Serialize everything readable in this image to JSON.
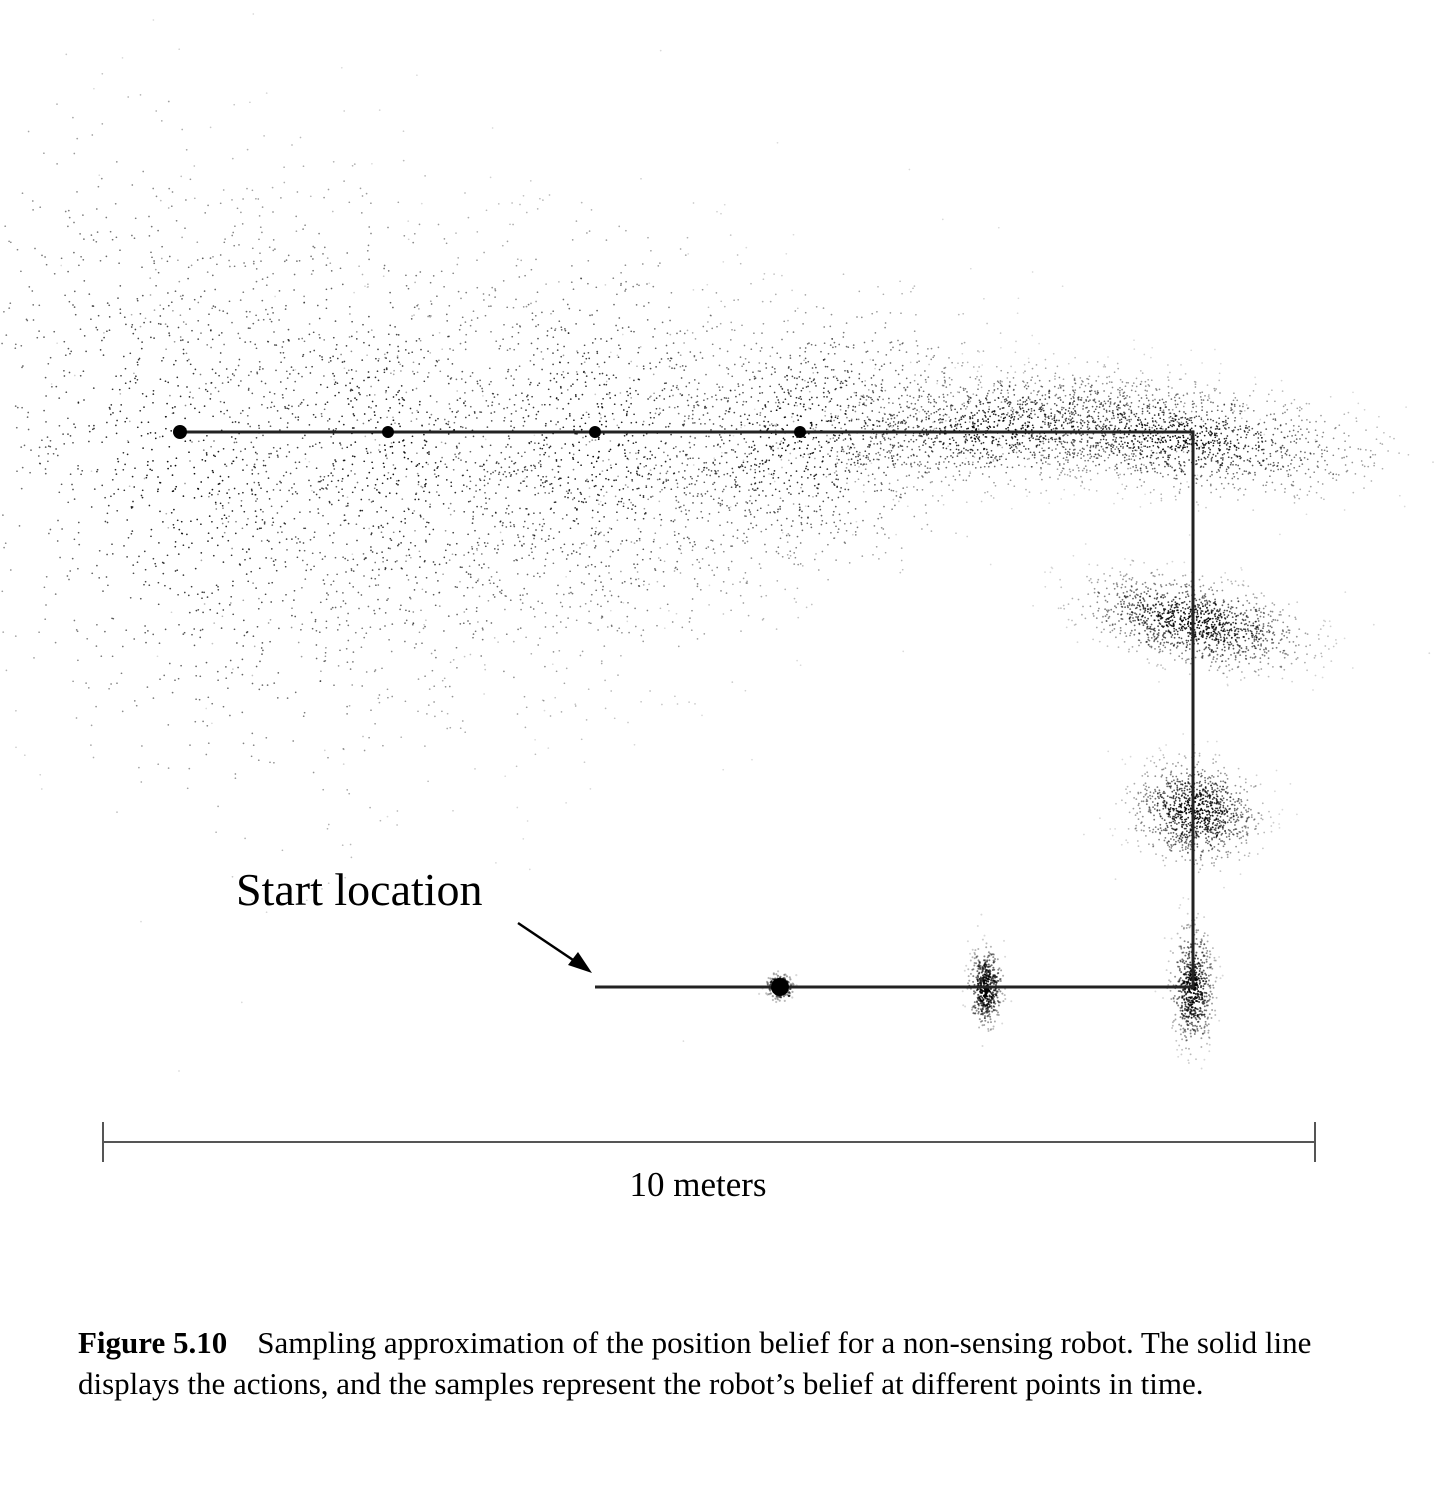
{
  "figure": {
    "start_label": "Start location",
    "scale_label": "10 meters",
    "colors": {
      "ink": "#000000",
      "path": "#222222",
      "scale_bar": "#555555"
    }
  },
  "caption": {
    "label": "Figure 5.10",
    "text": "Sampling approximation of the position belief for a non-sensing robot. The solid line displays the actions, and the samples represent the robot’s belief at different points in time."
  }
}
